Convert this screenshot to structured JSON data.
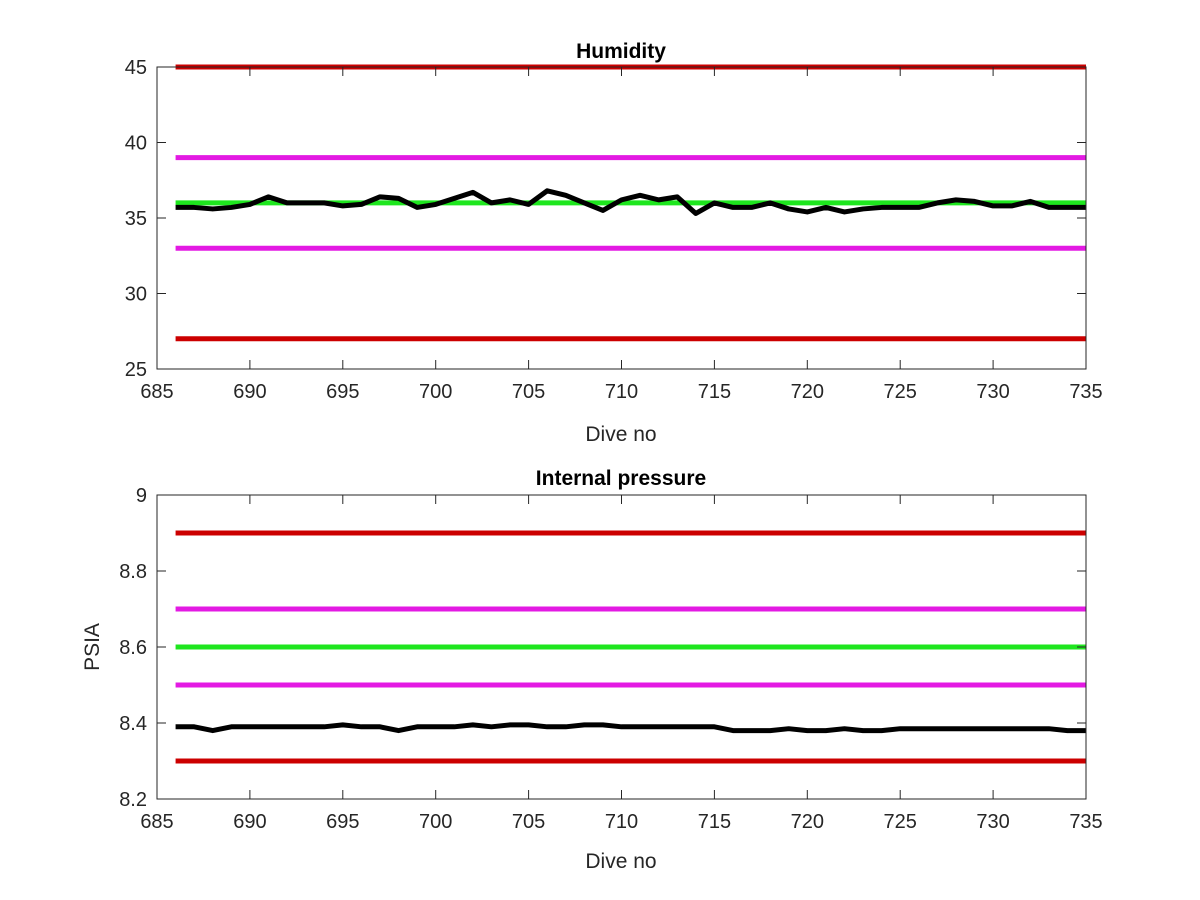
{
  "chart_data": [
    {
      "type": "line",
      "title": "Humidity",
      "xlabel": "Dive no",
      "ylabel": "",
      "xlim": [
        685,
        735
      ],
      "ylim": [
        25,
        45
      ],
      "xticks": [
        685,
        690,
        695,
        700,
        705,
        710,
        715,
        720,
        725,
        730,
        735
      ],
      "yticks": [
        25,
        30,
        35,
        40,
        45
      ],
      "grid": false,
      "limit_lines": [
        {
          "y": 45,
          "color": "#cc0000"
        },
        {
          "y": 39,
          "color": "#e31ae3"
        },
        {
          "y": 36,
          "color": "#1ee61e"
        },
        {
          "y": 33,
          "color": "#e31ae3"
        },
        {
          "y": 27,
          "color": "#cc0000"
        }
      ],
      "series": [
        {
          "color": "#000000",
          "x": [
            686,
            687,
            688,
            689,
            690,
            691,
            692,
            693,
            694,
            695,
            696,
            697,
            698,
            699,
            700,
            701,
            702,
            703,
            704,
            705,
            706,
            707,
            708,
            709,
            710,
            711,
            712,
            713,
            714,
            715,
            716,
            717,
            718,
            719,
            720,
            721,
            722,
            723,
            724,
            725,
            726,
            727,
            728,
            729,
            730,
            731,
            732,
            733,
            734,
            735
          ],
          "values": [
            35.7,
            35.7,
            35.6,
            35.7,
            35.9,
            36.4,
            36.0,
            36.0,
            36.0,
            35.8,
            35.9,
            36.4,
            36.3,
            35.7,
            35.9,
            36.3,
            36.7,
            36.0,
            36.2,
            35.9,
            36.8,
            36.5,
            36.0,
            35.5,
            36.2,
            36.5,
            36.2,
            36.4,
            35.3,
            36.0,
            35.7,
            35.7,
            36.0,
            35.6,
            35.4,
            35.7,
            35.4,
            35.6,
            35.7,
            35.7,
            35.7,
            36.0,
            36.2,
            36.1,
            35.8,
            35.8,
            36.1,
            35.7,
            35.7,
            35.7
          ]
        }
      ]
    },
    {
      "type": "line",
      "title": "Internal pressure",
      "xlabel": "Dive no",
      "ylabel": "PSIA",
      "xlim": [
        685,
        735
      ],
      "ylim": [
        8.2,
        9
      ],
      "xticks": [
        685,
        690,
        695,
        700,
        705,
        710,
        715,
        720,
        725,
        730,
        735
      ],
      "yticks": [
        8.2,
        8.4,
        8.6,
        8.8,
        9
      ],
      "grid": false,
      "limit_lines": [
        {
          "y": 8.9,
          "color": "#cc0000"
        },
        {
          "y": 8.7,
          "color": "#e31ae3"
        },
        {
          "y": 8.6,
          "color": "#1ee61e"
        },
        {
          "y": 8.5,
          "color": "#e31ae3"
        },
        {
          "y": 8.3,
          "color": "#cc0000"
        }
      ],
      "series": [
        {
          "color": "#000000",
          "x": [
            686,
            687,
            688,
            689,
            690,
            691,
            692,
            693,
            694,
            695,
            696,
            697,
            698,
            699,
            700,
            701,
            702,
            703,
            704,
            705,
            706,
            707,
            708,
            709,
            710,
            711,
            712,
            713,
            714,
            715,
            716,
            717,
            718,
            719,
            720,
            721,
            722,
            723,
            724,
            725,
            726,
            727,
            728,
            729,
            730,
            731,
            732,
            733,
            734,
            735
          ],
          "values": [
            8.39,
            8.39,
            8.38,
            8.39,
            8.39,
            8.39,
            8.39,
            8.39,
            8.39,
            8.395,
            8.39,
            8.39,
            8.38,
            8.39,
            8.39,
            8.39,
            8.395,
            8.39,
            8.395,
            8.395,
            8.39,
            8.39,
            8.395,
            8.395,
            8.39,
            8.39,
            8.39,
            8.39,
            8.39,
            8.39,
            8.38,
            8.38,
            8.38,
            8.385,
            8.38,
            8.38,
            8.385,
            8.38,
            8.38,
            8.385,
            8.385,
            8.385,
            8.385,
            8.385,
            8.385,
            8.385,
            8.385,
            8.385,
            8.38,
            8.38
          ]
        }
      ]
    }
  ]
}
